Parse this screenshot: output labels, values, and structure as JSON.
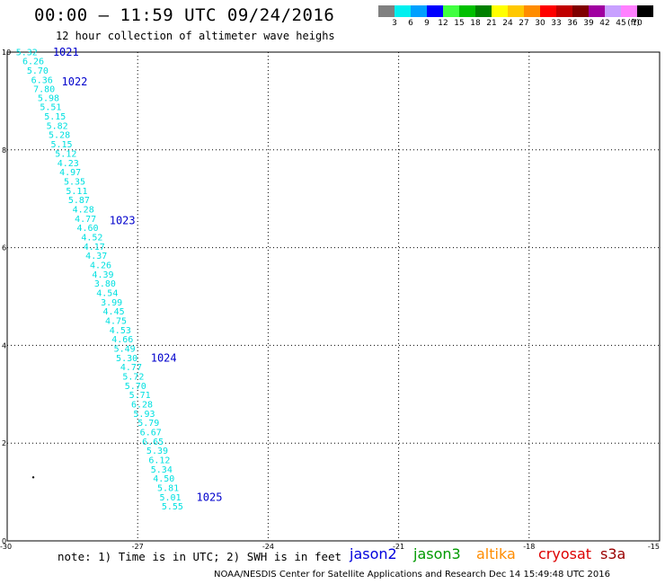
{
  "title": "00:00 – 11:59 UTC 09/24/2016",
  "subtitle": "12 hour collection of altimeter wave heighs",
  "legend": {
    "unit": "(ft)",
    "bins": [
      {
        "label": "3",
        "color": "#808080"
      },
      {
        "label": "6",
        "color": "#00f0f0"
      },
      {
        "label": "9",
        "color": "#00a0ff"
      },
      {
        "label": "12",
        "color": "#0000ff"
      },
      {
        "label": "15",
        "color": "#40ff40"
      },
      {
        "label": "18",
        "color": "#00c000"
      },
      {
        "label": "21",
        "color": "#008000"
      },
      {
        "label": "24",
        "color": "#ffff00"
      },
      {
        "label": "27",
        "color": "#ffc800"
      },
      {
        "label": "30",
        "color": "#ff8c00"
      },
      {
        "label": "33",
        "color": "#ff0000"
      },
      {
        "label": "36",
        "color": "#c00000"
      },
      {
        "label": "39",
        "color": "#800000"
      },
      {
        "label": "42",
        "color": "#a000a0"
      },
      {
        "label": "45",
        "color": "#c8a0ff"
      },
      {
        "label": "70",
        "color": "#ff80ff"
      },
      {
        "label": "",
        "color": "#000000"
      }
    ]
  },
  "chart_data": {
    "type": "scatter",
    "xlim": [
      -30,
      -15
    ],
    "ylim": [
      0,
      10
    ],
    "x_ticks": [
      "-30",
      "-27",
      "-24",
      "-21",
      "-18",
      "-15"
    ],
    "y_ticks": [
      "0",
      "2",
      "4",
      "6",
      "8",
      "10"
    ],
    "grid": true,
    "series": [
      {
        "name": "jason2",
        "color": "#00e0e0",
        "points": [
          {
            "x": -29.55,
            "y": 9.94,
            "label": "5.32"
          },
          {
            "x": -29.4,
            "y": 9.75,
            "label": "6.26"
          },
          {
            "x": -29.3,
            "y": 9.56,
            "label": "5.70"
          },
          {
            "x": -29.2,
            "y": 9.37,
            "label": "6.36"
          },
          {
            "x": -29.15,
            "y": 9.18,
            "label": "7.80"
          },
          {
            "x": -29.05,
            "y": 9.0,
            "label": "5.98"
          },
          {
            "x": -29.0,
            "y": 8.81,
            "label": "5.51"
          },
          {
            "x": -28.9,
            "y": 8.62,
            "label": "5.15"
          },
          {
            "x": -28.85,
            "y": 8.43,
            "label": "5.82"
          },
          {
            "x": -28.8,
            "y": 8.24,
            "label": "5.28"
          },
          {
            "x": -28.75,
            "y": 8.05,
            "label": "5.15"
          },
          {
            "x": -28.65,
            "y": 7.86,
            "label": "5.12"
          },
          {
            "x": -28.6,
            "y": 7.67,
            "label": "4.23"
          },
          {
            "x": -28.55,
            "y": 7.48,
            "label": "4.97"
          },
          {
            "x": -28.45,
            "y": 7.29,
            "label": "5.35"
          },
          {
            "x": -28.4,
            "y": 7.1,
            "label": "5.11"
          },
          {
            "x": -28.35,
            "y": 6.91,
            "label": "5.87"
          },
          {
            "x": -28.25,
            "y": 6.72,
            "label": "4.28"
          },
          {
            "x": -28.2,
            "y": 6.53,
            "label": "4.77"
          },
          {
            "x": -28.15,
            "y": 6.34,
            "label": "4.60"
          },
          {
            "x": -28.05,
            "y": 6.15,
            "label": "4.52"
          },
          {
            "x": -28.0,
            "y": 5.96,
            "label": "4.17"
          },
          {
            "x": -27.95,
            "y": 5.77,
            "label": "4.37"
          },
          {
            "x": -27.85,
            "y": 5.58,
            "label": "4.26"
          },
          {
            "x": -27.8,
            "y": 5.39,
            "label": "4.39"
          },
          {
            "x": -27.75,
            "y": 5.2,
            "label": "3.80"
          },
          {
            "x": -27.7,
            "y": 5.01,
            "label": "4.54"
          },
          {
            "x": -27.6,
            "y": 4.82,
            "label": "3.99"
          },
          {
            "x": -27.55,
            "y": 4.63,
            "label": "4.45"
          },
          {
            "x": -27.5,
            "y": 4.44,
            "label": "4.75"
          },
          {
            "x": -27.4,
            "y": 4.25,
            "label": "4.53"
          },
          {
            "x": -27.35,
            "y": 4.06,
            "label": "4.66"
          },
          {
            "x": -27.3,
            "y": 3.87,
            "label": "5.49"
          },
          {
            "x": -27.25,
            "y": 3.68,
            "label": "5.30"
          },
          {
            "x": -27.15,
            "y": 3.49,
            "label": "4.77"
          },
          {
            "x": -27.1,
            "y": 3.3,
            "label": "5.72"
          },
          {
            "x": -27.05,
            "y": 3.11,
            "label": "5.70"
          },
          {
            "x": -26.95,
            "y": 2.92,
            "label": "5.71"
          },
          {
            "x": -26.9,
            "y": 2.73,
            "label": "6.28"
          },
          {
            "x": -26.85,
            "y": 2.54,
            "label": "5.93"
          },
          {
            "x": -26.75,
            "y": 2.35,
            "label": "5.79"
          },
          {
            "x": -26.7,
            "y": 2.16,
            "label": "6.67"
          },
          {
            "x": -26.65,
            "y": 1.97,
            "label": "6.65"
          },
          {
            "x": -26.55,
            "y": 1.78,
            "label": "5.39"
          },
          {
            "x": -26.5,
            "y": 1.59,
            "label": "6.12"
          },
          {
            "x": -26.45,
            "y": 1.4,
            "label": "5.34"
          },
          {
            "x": -26.4,
            "y": 1.21,
            "label": "4.50"
          },
          {
            "x": -26.3,
            "y": 1.02,
            "label": "5.81"
          },
          {
            "x": -26.25,
            "y": 0.83,
            "label": "5.01"
          },
          {
            "x": -26.2,
            "y": 0.64,
            "label": "5.55"
          }
        ]
      }
    ],
    "annotations": [
      {
        "text": "1021",
        "x": -28.95,
        "y": 9.93,
        "color": "#0000cc"
      },
      {
        "text": "1022",
        "x": -28.75,
        "y": 9.32,
        "color": "#0000cc"
      },
      {
        "text": "1023",
        "x": -27.65,
        "y": 6.48,
        "color": "#0000cc"
      },
      {
        "text": "1024",
        "x": -26.7,
        "y": 3.67,
        "color": "#0000cc"
      },
      {
        "text": "1025",
        "x": -25.65,
        "y": 0.82,
        "color": "#0000cc"
      }
    ],
    "markers": [
      {
        "x": -29.4,
        "y": 1.3
      }
    ]
  },
  "note": "note: 1) Time is in UTC; 2) SWH is in feet",
  "satellites": [
    {
      "name": "jason2",
      "color": "#0000dd"
    },
    {
      "name": "jason3",
      "color": "#009900"
    },
    {
      "name": "altika",
      "color": "#ff8c00"
    },
    {
      "name": "cryosat",
      "color": "#dd0000"
    },
    {
      "name": "s3a",
      "color": "#990000"
    }
  ],
  "footer": "NOAA/NESDIS Center for Satellite Applications and Research   Dec 14 15:49:48 UTC 2016"
}
